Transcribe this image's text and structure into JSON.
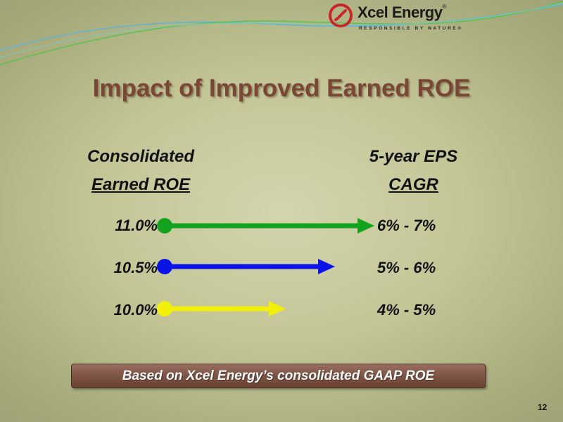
{
  "logo": {
    "wordmark": "Xcel Energy",
    "registered": "®",
    "tagline": "RESPONSIBLE BY NATURE®"
  },
  "title": "Impact of Improved Earned ROE",
  "headers": {
    "left_line1": "Consolidated",
    "left_line2": "Earned ROE",
    "right_line1": "5-year EPS",
    "right_line2": "CAGR"
  },
  "rows": [
    {
      "roe": "11.0%",
      "eps": "6% - 7%",
      "color": "#13a31e"
    },
    {
      "roe": "10.5%",
      "eps": "5% - 6%",
      "color": "#0a14e6"
    },
    {
      "roe": "10.0%",
      "eps": "4% - 5%",
      "color": "#f2f00b"
    }
  ],
  "footer": "Based on Xcel Energy’s consolidated GAAP ROE",
  "page_number": "12",
  "colors": {
    "title": "#7a4635",
    "footer_bg": "#7b5142",
    "logo_red": "#c9262a"
  }
}
